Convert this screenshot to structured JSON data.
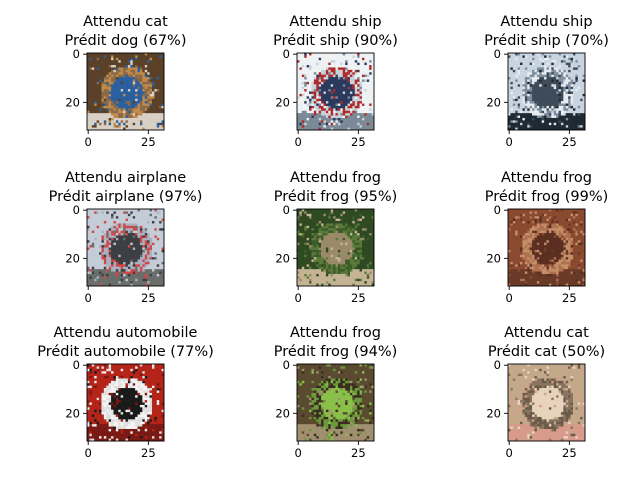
{
  "chart_data": {
    "type": "image-grid",
    "rows": 3,
    "cols": 3,
    "image_size": 32,
    "ticks": {
      "x": [
        0,
        25
      ],
      "y": [
        0,
        20
      ]
    },
    "panels": [
      {
        "expected_label": "Attendu cat",
        "predicted_label": "Prédit dog (67%)",
        "expected": "cat",
        "predicted": "dog",
        "confidence": 67,
        "picture": "cat lying on a blue blanket",
        "palette": [
          "#5a4128",
          "#8a6a48",
          "#2a5fa0",
          "#c08a4a",
          "#d8d0c4"
        ]
      },
      {
        "expected_label": "Attendu ship",
        "predicted_label": "Prédit ship (90%)",
        "expected": "ship",
        "predicted": "ship",
        "confidence": 90,
        "picture": "white and red ship on pale background",
        "palette": [
          "#eef2f4",
          "#c8d2da",
          "#2b3a5c",
          "#b02a2a",
          "#7a8a96"
        ]
      },
      {
        "expected_label": "Attendu ship",
        "predicted_label": "Prédit ship (70%)",
        "expected": "ship",
        "predicted": "ship",
        "confidence": 70,
        "picture": "boat in a harbour",
        "palette": [
          "#c8d4e0",
          "#7c8e9e",
          "#3e4c5a",
          "#e8ecef",
          "#1f2a33"
        ]
      },
      {
        "expected_label": "Attendu airplane",
        "predicted_label": "Prédit airplane (97%)",
        "expected": "airplane",
        "predicted": "airplane",
        "confidence": 97,
        "picture": "concorde jet on a grey sky",
        "palette": [
          "#c4ccd8",
          "#a8b2c2",
          "#3d3f44",
          "#d04848",
          "#6a6e6a"
        ]
      },
      {
        "expected_label": "Attendu frog",
        "predicted_label": "Prédit frog (95%)",
        "expected": "frog",
        "predicted": "frog",
        "confidence": 95,
        "picture": "brown frog in green grass",
        "palette": [
          "#2f4a22",
          "#5b7a3a",
          "#9a8a6a",
          "#3c5c2a",
          "#c4b494"
        ]
      },
      {
        "expected_label": "Attendu frog",
        "predicted_label": "Prédit frog (99%)",
        "expected": "frog",
        "predicted": "frog",
        "confidence": 99,
        "picture": "brown toad on reddish ground",
        "palette": [
          "#8a4a30",
          "#b07050",
          "#5a2e20",
          "#c49068",
          "#6a3a28"
        ]
      },
      {
        "expected_label": "Attendu automobile",
        "predicted_label": "Prédit automobile (77%)",
        "expected": "automobile",
        "predicted": "automobile",
        "confidence": 77,
        "picture": "white car on a red background",
        "palette": [
          "#b42418",
          "#e0e0e0",
          "#1a1a1a",
          "#f4f4f4",
          "#7a1a14"
        ]
      },
      {
        "expected_label": "Attendu frog",
        "predicted_label": "Prédit frog (94%)",
        "expected": "frog",
        "predicted": "frog",
        "confidence": 94,
        "picture": "green tree frog on a dark brown branch",
        "palette": [
          "#5a4a30",
          "#6a9a3a",
          "#8ac04a",
          "#3a2c1e",
          "#a09070"
        ]
      },
      {
        "expected_label": "Attendu cat",
        "predicted_label": "Prédit cat (50%)",
        "expected": "cat",
        "predicted": "cat",
        "confidence": 50,
        "picture": "tabby cat face close-up",
        "palette": [
          "#c4a88a",
          "#8a7460",
          "#e8d4bc",
          "#6a5a4a",
          "#d89a8a"
        ]
      }
    ]
  }
}
